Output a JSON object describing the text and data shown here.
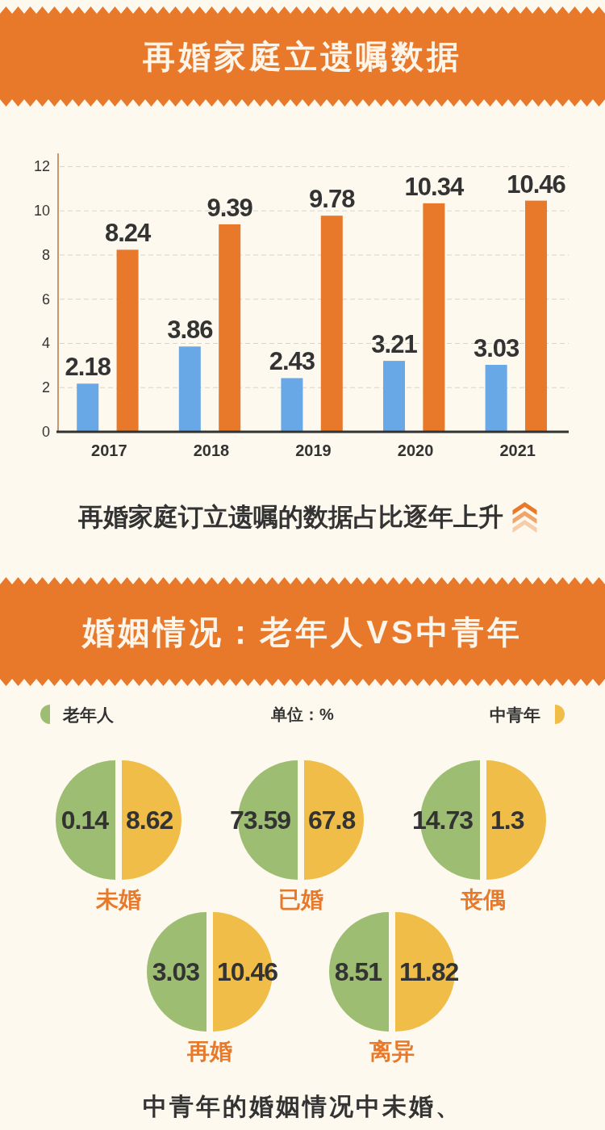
{
  "chart_data": [
    {
      "type": "bar",
      "title": "再婚家庭立遗嘱数据",
      "categories": [
        "2017",
        "2018",
        "2019",
        "2020",
        "2021"
      ],
      "series": [
        {
          "color": "#68a8e6",
          "values": [
            2.18,
            3.86,
            2.43,
            3.21,
            3.03
          ]
        },
        {
          "color": "#e8792a",
          "values": [
            8.24,
            9.39,
            9.78,
            10.34,
            10.46
          ]
        }
      ],
      "ylim": [
        0,
        12.6
      ],
      "yticks": [
        0,
        2,
        4,
        6,
        8,
        10,
        12
      ],
      "grid": "y",
      "data_labels": true,
      "annotations": [
        "再婚家庭订立遗嘱的数据占比逐年上升"
      ]
    },
    {
      "type": "other",
      "title": "婚姻情况：老年人VS中青年",
      "categories": [
        "未婚",
        "已婚",
        "丧偶",
        "再婚",
        "离异"
      ],
      "series": [
        {
          "name": "老年人",
          "color": "#9dbe72",
          "values": [
            0.14,
            73.59,
            14.73,
            3.03,
            8.51
          ]
        },
        {
          "name": "中青年",
          "color": "#f0be48",
          "values": [
            8.62,
            67.8,
            1.3,
            10.46,
            11.82
          ]
        }
      ],
      "legend": "top",
      "data_labels": true,
      "annotations": [
        "单位：%",
        "中青年的婚姻情况中未婚、"
      ]
    }
  ]
}
